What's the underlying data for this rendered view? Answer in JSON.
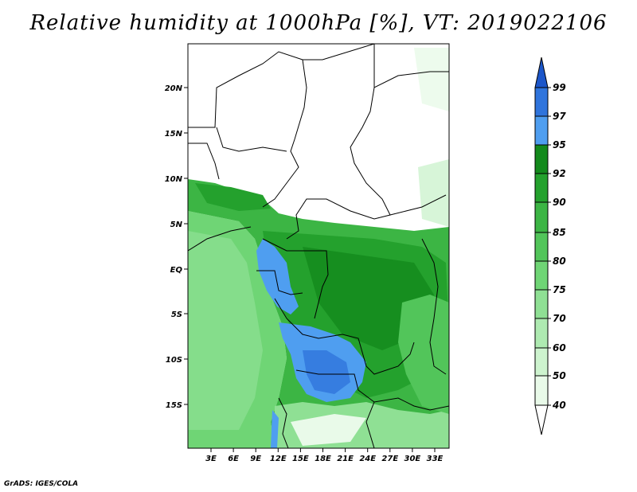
{
  "title": "Relative humidity at 1000hPa [%], VT: 2019022106",
  "credit": "GrADS: IGES/COLA",
  "map": {
    "lat_ticks": [
      "20N",
      "15N",
      "10N",
      "5N",
      "EQ",
      "5S",
      "10S",
      "15S"
    ],
    "lon_ticks": [
      "3E",
      "6E",
      "9E",
      "12E",
      "15E",
      "18E",
      "21E",
      "24E",
      "27E",
      "30E",
      "33E"
    ]
  },
  "colorbar": {
    "labels": [
      "99",
      "97",
      "95",
      "92",
      "90",
      "85",
      "80",
      "75",
      "70",
      "60",
      "50",
      "40"
    ],
    "colors": [
      "#1c56c9",
      "#2f74dc",
      "#4f9ef0",
      "#138a1c",
      "#24a12d",
      "#3cb544",
      "#52c55a",
      "#6fd575",
      "#8fe094",
      "#aeeab1",
      "#cdf3ce",
      "#e9fae9",
      "#ffffff"
    ]
  }
}
